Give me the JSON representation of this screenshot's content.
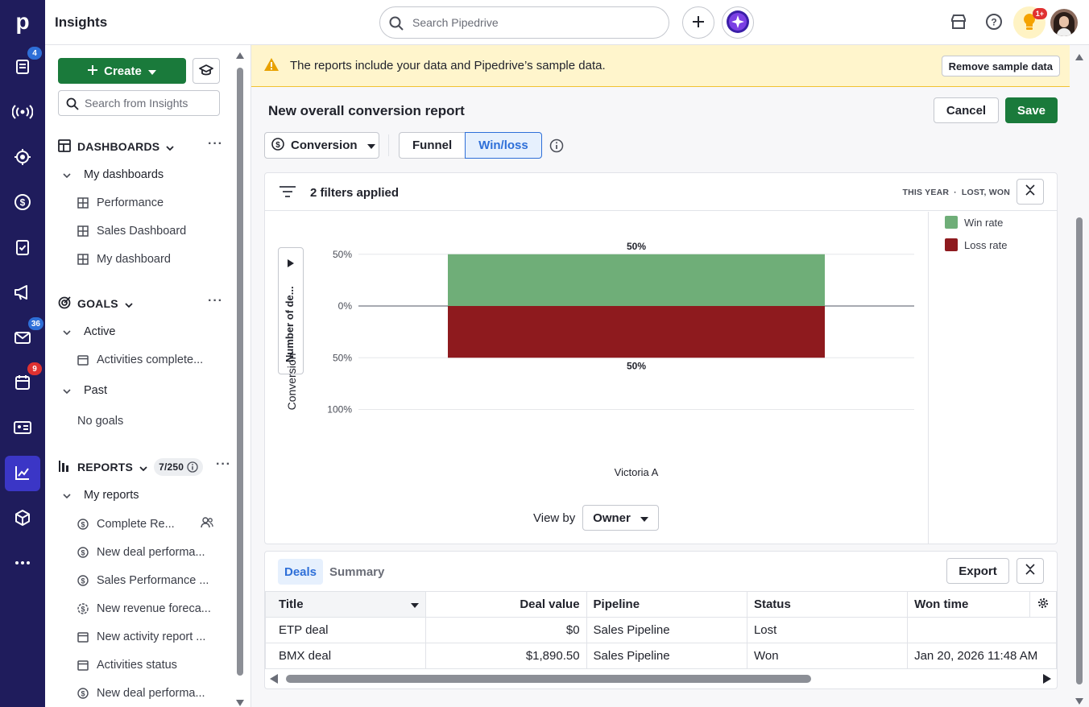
{
  "rail": {
    "logo": "p",
    "badges": {
      "leads": "4",
      "mail": "36",
      "activities": "9"
    }
  },
  "topbar": {
    "title": "Insights",
    "search_placeholder": "Search Pipedrive",
    "notif_badge": "1+"
  },
  "sidebar": {
    "create_label": "Create",
    "search_placeholder": "Search from Insights",
    "dashboards": {
      "heading": "DASHBOARDS",
      "group": "My dashboards",
      "items": [
        "Performance",
        "Sales Dashboard",
        "My dashboard"
      ]
    },
    "goals": {
      "heading": "GOALS",
      "active_label": "Active",
      "active_items": [
        "Activities complete..."
      ],
      "past_label": "Past",
      "past_empty": "No goals"
    },
    "reports": {
      "heading": "REPORTS",
      "count": "7/250",
      "group": "My reports",
      "items": [
        "Complete Re...",
        "New deal performa...",
        "Sales Performance ...",
        "New revenue foreca...",
        "New activity report ...",
        "Activities status",
        "New deal performa..."
      ]
    }
  },
  "banner": {
    "message": "The reports include your data and Pipedrive’s sample data.",
    "remove_label": "Remove sample data"
  },
  "report": {
    "title": "New overall conversion report",
    "cancel_label": "Cancel",
    "save_label": "Save",
    "type_label": "Conversion",
    "seg_funnel": "Funnel",
    "seg_winloss": "Win/loss",
    "filters_label": "2 filters applied",
    "filter_period": "THIS YEAR",
    "filter_status": "LOST, WON",
    "y_axis_collapsed": "Number of de...",
    "view_by_label": "View by",
    "view_by_value": "Owner"
  },
  "chart_data": {
    "type": "bar",
    "categories": [
      "Victoria A"
    ],
    "series": [
      {
        "name": "Win rate",
        "values": [
          50
        ],
        "color": "#6fae78"
      },
      {
        "name": "Loss rate",
        "values": [
          50
        ],
        "color": "#8e1a1e"
      }
    ],
    "ylabel": "Conversion",
    "yticks": [
      "100%",
      "50%",
      "0%",
      "50%",
      "100%"
    ],
    "ylim": [
      -100,
      100
    ],
    "data_labels": [
      "50%",
      "50%"
    ],
    "legend": "right"
  },
  "table": {
    "tab_deals": "Deals",
    "tab_summary": "Summary",
    "export_label": "Export",
    "columns": [
      "Title",
      "Deal value",
      "Pipeline",
      "Status",
      "Won time"
    ],
    "rows": [
      [
        "ETP deal",
        "$0",
        "Sales Pipeline",
        "Lost",
        ""
      ],
      [
        "BMX deal",
        "$1,890.50",
        "Sales Pipeline",
        "Won",
        "Jan 20, 2026 11:48 AM"
      ]
    ]
  }
}
